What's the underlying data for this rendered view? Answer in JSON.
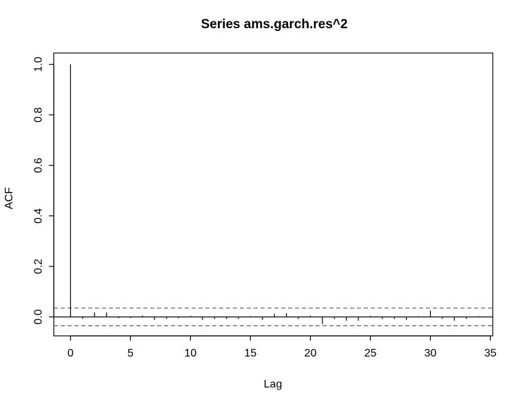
{
  "chart_data": {
    "type": "bar",
    "title": "Series  ams.garch.res^2",
    "xlabel": "Lag",
    "ylabel": "ACF",
    "xlim": [
      -1.4,
      35.2
    ],
    "ylim": [
      -0.075,
      1.045
    ],
    "x_ticks": [
      0,
      5,
      10,
      15,
      20,
      25,
      30,
      35
    ],
    "x_tick_labels": [
      "0",
      "5",
      "10",
      "15",
      "20",
      "25",
      "30",
      "35"
    ],
    "y_ticks": [
      0.0,
      0.2,
      0.4,
      0.6,
      0.8,
      1.0
    ],
    "y_tick_labels": [
      "0.0",
      "0.2",
      "0.4",
      "0.6",
      "0.8",
      "1.0"
    ],
    "lags": [
      0,
      1,
      2,
      3,
      4,
      5,
      6,
      7,
      8,
      9,
      10,
      11,
      12,
      13,
      14,
      15,
      16,
      17,
      18,
      19,
      20,
      21,
      22,
      23,
      24,
      25,
      26,
      27,
      28,
      29,
      30,
      31,
      32,
      33,
      34
    ],
    "acf": [
      1.0,
      -0.008,
      0.018,
      0.018,
      -0.005,
      -0.004,
      0.005,
      -0.012,
      -0.008,
      -0.005,
      0.004,
      -0.012,
      -0.008,
      -0.008,
      -0.008,
      0.003,
      -0.012,
      0.012,
      0.015,
      -0.008,
      0.005,
      -0.028,
      -0.008,
      -0.015,
      -0.015,
      0.004,
      -0.008,
      -0.008,
      -0.012,
      0.003,
      0.025,
      -0.008,
      -0.015,
      -0.008,
      0.003
    ],
    "confidence_bound": 0.035,
    "colors": {
      "bars": "#000000",
      "confidence_lines": "#5b5bdf",
      "zero_line": "#000000"
    },
    "grid": false,
    "legend": "none"
  }
}
